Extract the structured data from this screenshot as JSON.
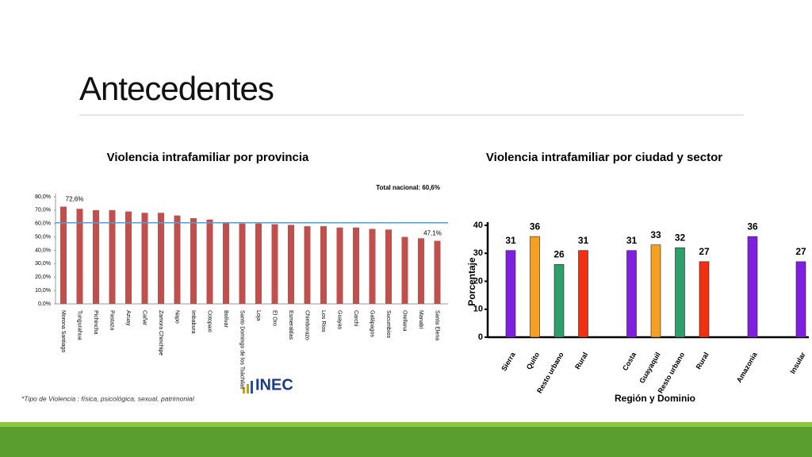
{
  "title": "Antecedentes",
  "footnote": "*Tipo de Violencia : física, psicológica, sexual, patrimonial",
  "logo": "INEC",
  "chart_data": [
    {
      "type": "bar",
      "title": "Violencia intrafamiliar por provincia",
      "color": "#c0504d",
      "categories": [
        "Morona Santiago",
        "Tungurahua",
        "Pichincha",
        "Pastaza",
        "Azuay",
        "Cañar",
        "Zamora Chinchipe",
        "Napo",
        "Imbabura",
        "Cotopaxi",
        "Bolívar",
        "Santo Domingo de los Tsáchilas",
        "Loja",
        "El Oro",
        "Esmeraldas",
        "Chimborazo",
        "Los Ríos",
        "Guayas",
        "Carchi",
        "Galápagos",
        "Sucumbíos",
        "Orellana",
        "Manabí",
        "Santa Elena"
      ],
      "values": [
        72.6,
        71,
        70,
        70,
        69,
        68,
        68,
        66,
        64,
        63,
        61,
        60,
        60,
        59.5,
        59,
        58,
        58,
        57,
        57,
        56,
        55.5,
        50,
        49,
        47.1
      ],
      "value_labels": [
        "72,6%",
        null,
        null,
        null,
        null,
        null,
        null,
        null,
        null,
        null,
        null,
        null,
        null,
        null,
        null,
        null,
        null,
        null,
        null,
        null,
        null,
        null,
        null,
        "47,1%"
      ],
      "reference_line": {
        "value": 60.6,
        "label": "Total nacional: 60,6%",
        "color": "#4f9fd8"
      },
      "ylim": [
        0,
        80
      ],
      "yticks": [
        {
          "value": 0,
          "label": "0,0%"
        },
        {
          "value": 10,
          "label": "10,0%"
        },
        {
          "value": 20,
          "label": "20,0%"
        },
        {
          "value": 30,
          "label": "30,0%"
        },
        {
          "value": 40,
          "label": "40,0%"
        },
        {
          "value": 50,
          "label": "50,0%"
        },
        {
          "value": 60,
          "label": "60,0%"
        },
        {
          "value": 70,
          "label": "70,0%"
        },
        {
          "value": 80,
          "label": "80,0%"
        }
      ]
    },
    {
      "type": "bar",
      "title": "Violencia intrafamiliar por ciudad y sector",
      "ylabel": "Porcentaje",
      "xlabel": "Región y Dominio",
      "categories": [
        "Sierra",
        "Quito",
        "Resto urbano",
        "Rural",
        null,
        "Costa",
        "Guayaquil",
        "Resto urbano",
        "Rural",
        null,
        "Amazonia",
        null,
        "Insular"
      ],
      "values": [
        31,
        36,
        26,
        31,
        null,
        31,
        33,
        32,
        27,
        null,
        36,
        null,
        27
      ],
      "colors": [
        "#7f1fe0",
        "#f5a020",
        "#2e9e6a",
        "#f03010",
        null,
        "#7f1fe0",
        "#f5a020",
        "#2e9e6a",
        "#f03010",
        null,
        "#7f1fe0",
        null,
        "#7f1fe0"
      ],
      "ylim": [
        0,
        40
      ],
      "yticks": [
        0,
        10,
        20,
        30,
        40
      ]
    }
  ]
}
